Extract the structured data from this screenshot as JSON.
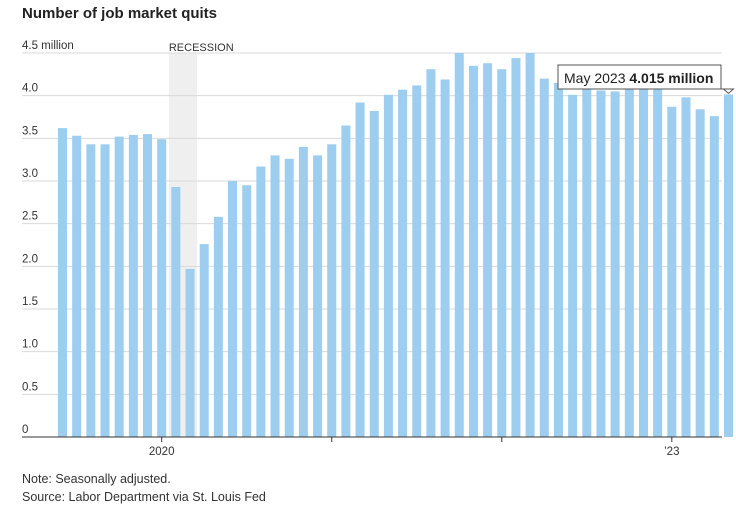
{
  "title": "Number of job market quits",
  "note": "Note: Seasonally adjusted.",
  "source": "Source: Labor Department via St. Louis Fed",
  "chart_data": {
    "type": "bar",
    "title": "Number of job market quits",
    "ylabel": "",
    "xlabel": "",
    "ylim": [
      0,
      4.5
    ],
    "y_ticks": [
      {
        "value": 0,
        "label": "0"
      },
      {
        "value": 0.5,
        "label": "0.5"
      },
      {
        "value": 1.0,
        "label": "1.0"
      },
      {
        "value": 1.5,
        "label": "1.5"
      },
      {
        "value": 2.0,
        "label": "2.0"
      },
      {
        "value": 2.5,
        "label": "2.5"
      },
      {
        "value": 3.0,
        "label": "3.0"
      },
      {
        "value": 3.5,
        "label": "3.5"
      },
      {
        "value": 4.0,
        "label": "4.0"
      },
      {
        "value": 4.5,
        "label": "4.5 million"
      }
    ],
    "x": [
      "2019-06",
      "2019-07",
      "2019-08",
      "2019-09",
      "2019-10",
      "2019-11",
      "2019-12",
      "2020-01",
      "2020-02",
      "2020-03",
      "2020-04",
      "2020-05",
      "2020-06",
      "2020-07",
      "2020-08",
      "2020-09",
      "2020-10",
      "2020-11",
      "2020-12",
      "2021-01",
      "2021-02",
      "2021-03",
      "2021-04",
      "2021-05",
      "2021-06",
      "2021-07",
      "2021-08",
      "2021-09",
      "2021-10",
      "2021-11",
      "2021-12",
      "2022-01",
      "2022-02",
      "2022-03",
      "2022-04",
      "2022-05",
      "2022-06",
      "2022-07",
      "2022-08",
      "2022-09",
      "2022-10",
      "2022-11",
      "2022-12",
      "2023-01",
      "2023-02",
      "2023-03",
      "2023-04",
      "2023-05"
    ],
    "values": [
      3.62,
      3.53,
      3.43,
      3.43,
      3.52,
      3.54,
      3.55,
      3.49,
      2.93,
      1.97,
      2.26,
      2.58,
      3.0,
      2.95,
      3.17,
      3.3,
      3.26,
      3.4,
      3.3,
      3.43,
      3.65,
      3.92,
      3.82,
      4.01,
      4.07,
      4.12,
      4.31,
      4.19,
      4.5,
      4.35,
      4.38,
      4.31,
      4.44,
      4.5,
      4.2,
      4.15,
      4.01,
      4.09,
      4.06,
      4.05,
      4.08,
      4.08,
      4.08,
      3.87,
      3.98,
      3.84,
      3.76,
      4.015
    ],
    "x_tick_labels": [
      {
        "x": "2020-01",
        "label": "2020"
      },
      {
        "x": "2023-01",
        "label": "’23"
      }
    ],
    "x_minor_ticks": [
      "2021-01",
      "2022-01"
    ],
    "recession": {
      "start": "2020-02",
      "end": "2020-03",
      "label": "RECESSION"
    },
    "annotation": {
      "x": "2023-05",
      "label": "May 2023",
      "value_label": "4.015 million"
    },
    "grid": true,
    "colors": {
      "bar": "#9dcdef",
      "recession": "#efefef",
      "grid": "#d9d9d9",
      "axis": "#333333"
    }
  }
}
